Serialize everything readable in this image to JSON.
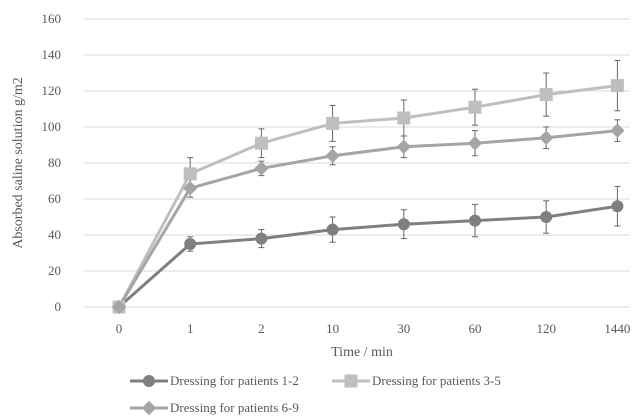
{
  "chart_data": {
    "type": "line",
    "title": "",
    "xlabel": "Time / min",
    "ylabel": "Absorbed saline solution g/m2",
    "categories": [
      "0",
      "1",
      "2",
      "10",
      "30",
      "60",
      "120",
      "1440"
    ],
    "ylim": [
      0,
      160
    ],
    "yticks": [
      0,
      20,
      40,
      60,
      80,
      100,
      120,
      140,
      160
    ],
    "grid": "horizontal",
    "legend_position": "bottom",
    "series": [
      {
        "name": "Dressing for patients 1-2",
        "marker": "circle",
        "color": "#7f7f7f",
        "values": [
          0,
          35,
          38,
          43,
          46,
          48,
          50,
          56
        ],
        "error": [
          0,
          4,
          5,
          7,
          8,
          9,
          9,
          11
        ]
      },
      {
        "name": "Dressing for patients 3-5",
        "marker": "square",
        "color": "#bfbfbf",
        "values": [
          0,
          74,
          91,
          102,
          105,
          111,
          118,
          123
        ],
        "error": [
          0,
          9,
          8,
          10,
          10,
          10,
          12,
          14
        ]
      },
      {
        "name": "Dressing for patients 6-9",
        "marker": "diamond",
        "color": "#a5a5a5",
        "values": [
          0,
          66,
          77,
          84,
          89,
          91,
          94,
          98
        ],
        "error": [
          0,
          5,
          4,
          5,
          6,
          7,
          6,
          6
        ]
      }
    ]
  }
}
